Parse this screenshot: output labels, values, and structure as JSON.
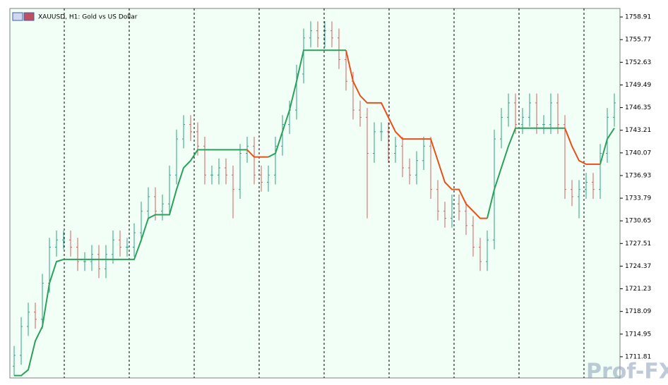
{
  "chart_data": {
    "type": "ohlc",
    "title": "XAUUSD, H1:  Gold vs US Dollar",
    "watermark": "Prof-FX",
    "ylim": [
      1708.87,
      1760.09
    ],
    "yticks": [
      1758.91,
      1755.77,
      1752.63,
      1749.49,
      1746.35,
      1743.21,
      1740.07,
      1736.93,
      1733.79,
      1730.65,
      1727.51,
      1724.37,
      1721.23,
      1718.09,
      1714.95,
      1711.81
    ],
    "up_color": "#2f9e86",
    "down_color": "#d0605e",
    "open": [
      1710.5,
      1712,
      1716,
      1718,
      1717,
      1722,
      1727,
      1728,
      1728,
      1727,
      1725,
      1725,
      1726,
      1724,
      1726,
      1728,
      1727,
      1727,
      1729,
      1732,
      1734,
      1732,
      1733,
      1737,
      1742,
      1744,
      1743,
      1741,
      1737,
      1737,
      1738,
      1737,
      1735,
      1740,
      1741,
      1737,
      1736,
      1737,
      1741,
      1744,
      1746,
      1751,
      1756,
      1757,
      1756,
      1757,
      1756,
      1753,
      1750,
      1746,
      1745,
      1740,
      1743,
      1743,
      1740,
      1741,
      1738,
      1737,
      1739,
      1741,
      1735,
      1732,
      1731,
      1733,
      1732,
      1730,
      1727,
      1725,
      1728,
      1742,
      1745,
      1747,
      1744,
      1745,
      1747,
      1744,
      1744,
      1747,
      1744,
      1735,
      1734,
      1735,
      1736,
      1735,
      1740,
      1745
    ],
    "high": [
      1713.3,
      1717.3,
      1719.3,
      1719.3,
      1723.3,
      1728.3,
      1729.3,
      1729.3,
      1729.3,
      1728.3,
      1726.3,
      1727.3,
      1727.3,
      1727.3,
      1729.3,
      1729.3,
      1728.3,
      1730.3,
      1733.3,
      1735.3,
      1735.3,
      1734.3,
      1738.3,
      1743.3,
      1745.3,
      1745.3,
      1744.3,
      1742.3,
      1738.3,
      1739.3,
      1739.3,
      1738.3,
      1741.3,
      1742.3,
      1742.3,
      1738.3,
      1738.3,
      1742.3,
      1745.3,
      1747.3,
      1752.3,
      1757.3,
      1758.3,
      1758.3,
      1758.3,
      1758.3,
      1757.3,
      1754.3,
      1751.3,
      1747.3,
      1746.3,
      1744.3,
      1744.3,
      1744.3,
      1742.3,
      1742.3,
      1739.3,
      1740.3,
      1742.3,
      1742.3,
      1736.3,
      1733.3,
      1734.3,
      1734.3,
      1733.3,
      1731.3,
      1728.3,
      1729.3,
      1743.3,
      1746.3,
      1748.3,
      1748.3,
      1746.3,
      1748.3,
      1748.3,
      1745.3,
      1748.3,
      1748.3,
      1745.3,
      1736.3,
      1736.3,
      1737.3,
      1737.3,
      1741.3,
      1746.3,
      1748.3
    ],
    "low": [
      1709.2,
      1710.7,
      1714.7,
      1715.7,
      1715.7,
      1720.7,
      1725.7,
      1726.7,
      1725.7,
      1723.7,
      1723.7,
      1723.7,
      1722.7,
      1722.7,
      1724.7,
      1725.7,
      1725.7,
      1725.7,
      1727.7,
      1730.7,
      1730.7,
      1730.7,
      1731.7,
      1735.7,
      1740.7,
      1741.7,
      1739.7,
      1735.7,
      1735.7,
      1735.7,
      1735.7,
      1731,
      1733.7,
      1738.7,
      1735.7,
      1734.7,
      1734.7,
      1735.7,
      1739.7,
      1742.7,
      1744.7,
      1749.7,
      1754.7,
      1754.7,
      1754.7,
      1754.7,
      1751.7,
      1748.7,
      1744.7,
      1743.7,
      1731,
      1738.7,
      1741.7,
      1738.7,
      1738.7,
      1736.7,
      1735.7,
      1735.7,
      1737.7,
      1733.7,
      1730.7,
      1729.7,
      1729.7,
      1730.7,
      1728.7,
      1725.7,
      1723.7,
      1723.7,
      1726.7,
      1740.7,
      1743.7,
      1742.7,
      1742.7,
      1743.7,
      1742.7,
      1742.7,
      1742.7,
      1742.7,
      1733.7,
      1732.7,
      1731,
      1733.7,
      1733.7,
      1733.7,
      1738.7,
      1743.7
    ],
    "close": [
      1712,
      1716,
      1718,
      1717,
      1722,
      1727,
      1728,
      1728,
      1727,
      1725,
      1725,
      1726,
      1724,
      1726,
      1728,
      1727,
      1727,
      1729,
      1732,
      1734,
      1732,
      1733,
      1737,
      1742,
      1744,
      1743,
      1741,
      1737,
      1737,
      1738,
      1737,
      1735,
      1740,
      1741,
      1737,
      1736,
      1737,
      1741,
      1744,
      1746,
      1751,
      1756,
      1757,
      1756,
      1757,
      1756,
      1753,
      1750,
      1746,
      1745,
      1740,
      1743,
      1743,
      1740,
      1741,
      1738,
      1737,
      1739,
      1741,
      1735,
      1732,
      1731,
      1733,
      1732,
      1730,
      1727,
      1725,
      1728,
      1742,
      1745,
      1747,
      1744,
      1745,
      1747,
      1744,
      1744,
      1747,
      1744,
      1735,
      1734,
      1735,
      1736,
      1735,
      1740,
      1745,
      1747
    ],
    "series": [
      {
        "color": "#2ca05a",
        "values": [
          1709.2,
          1709.2,
          1710,
          1714,
          1716,
          1722,
          1725,
          1725.3,
          1725.3,
          1725.3,
          1725.3,
          1725.3,
          1725.3,
          1725.3,
          1725.3,
          1725.3,
          1725.3,
          1725.3,
          1728,
          1731,
          1731.5,
          1731.5,
          1731.5,
          1735,
          1738,
          1739,
          1740.5,
          1740.5,
          1740.5,
          1740.5,
          1740.5,
          1740.5,
          1740.5,
          1740.5,
          null,
          null,
          1739.5,
          1740,
          1743,
          1746,
          1750,
          1754.3,
          1754.3,
          1754.3,
          1754.3,
          1754.3,
          1754.3,
          1754.3,
          null,
          null,
          null,
          null,
          null,
          null,
          null,
          null,
          null,
          null,
          null,
          null,
          null,
          null,
          null,
          null,
          null,
          null,
          null,
          1731,
          1735,
          1738,
          1741,
          1743.5,
          1743.5,
          1743.5,
          1743.5,
          1743.5,
          1743.5,
          1743.5,
          1743.5,
          null,
          null,
          null,
          null,
          1738.5,
          1742,
          1743.5
        ]
      },
      {
        "color": "#e8501a",
        "values": [
          null,
          null,
          null,
          null,
          null,
          null,
          null,
          null,
          null,
          null,
          null,
          null,
          null,
          null,
          null,
          null,
          null,
          null,
          null,
          null,
          null,
          null,
          null,
          null,
          null,
          null,
          null,
          null,
          null,
          null,
          null,
          null,
          null,
          1740.5,
          1739.5,
          1739.5,
          1739.5,
          null,
          null,
          null,
          null,
          null,
          null,
          null,
          null,
          null,
          null,
          1754.3,
          1750,
          1748,
          1747,
          1747,
          1747,
          1745,
          1743,
          1742,
          1742,
          1742,
          1742,
          1742,
          1739,
          1736,
          1735,
          1735,
          1733,
          1732,
          1731,
          1731,
          null,
          null,
          null,
          null,
          null,
          null,
          null,
          null,
          null,
          null,
          1743.5,
          1741,
          1739,
          1738.5,
          1738.5,
          1738.5,
          null,
          null
        ]
      }
    ]
  }
}
